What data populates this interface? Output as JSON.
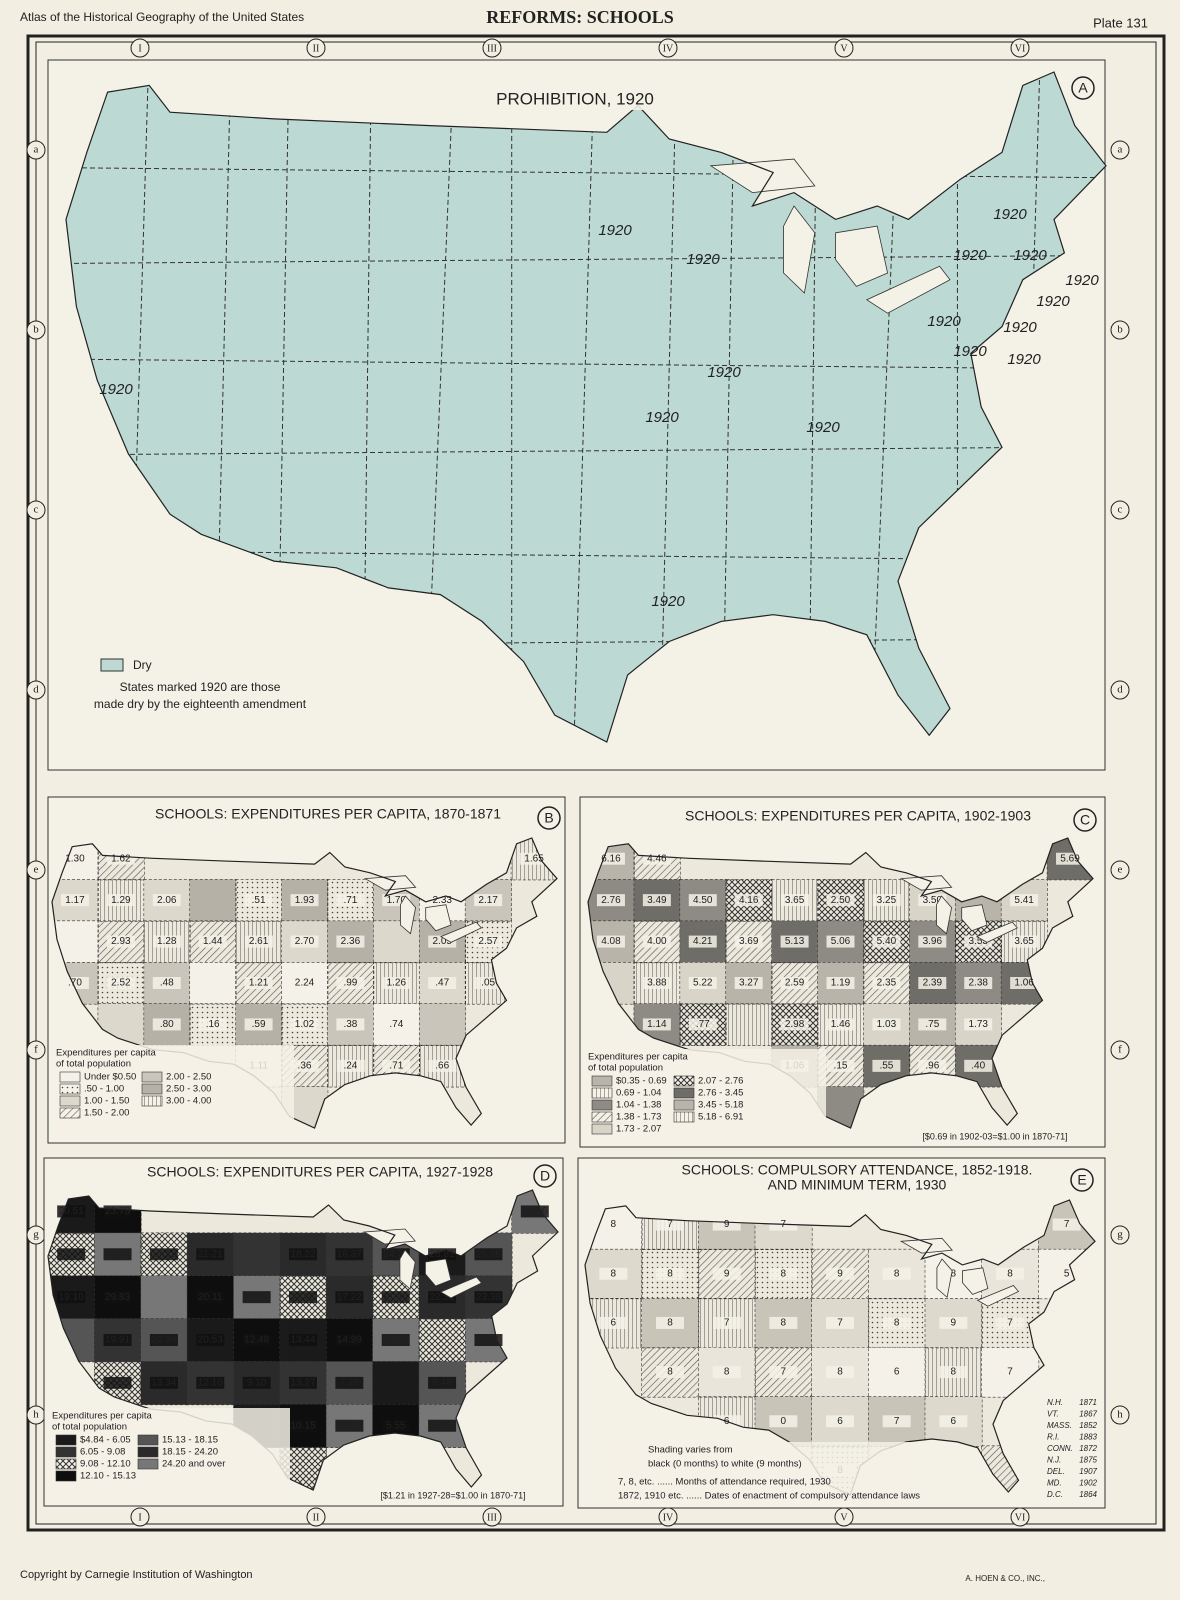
{
  "header": {
    "left": "Atlas of the Historical Geography of the United States",
    "title": "REFORMS: SCHOOLS",
    "plate": "Plate 131"
  },
  "grid": {
    "columns": [
      "I",
      "II",
      "III",
      "IV",
      "V",
      "VI"
    ],
    "rows": [
      "a",
      "b",
      "c",
      "d",
      "e",
      "f",
      "g",
      "h"
    ]
  },
  "maps": [
    {
      "letter": "A",
      "title": "PROHIBITION, 1920",
      "labels": [
        "1920",
        "1920",
        "1920",
        "1920",
        "1920",
        "1920",
        "1920",
        "1920",
        "1920",
        "1920",
        "1920",
        "1920",
        "1920",
        "1920",
        "1920",
        "1920"
      ],
      "legend": {
        "items": [
          "Dry"
        ],
        "note": [
          "States marked 1920 are those",
          "made dry by the eighteenth amendment"
        ]
      }
    },
    {
      "letter": "B",
      "title": "SCHOOLS: EXPENDITURES PER CAPITA, 1870-1871",
      "labels": [
        "1.30",
        "1.62",
        "1.65",
        "1.17",
        "1.29",
        "2.06",
        ".51",
        "1.93",
        ".71",
        "1.70",
        "2.33",
        "2.17",
        "2.93",
        "1.28",
        "1.44",
        "2.61",
        "2.70",
        "2.36",
        "2.05",
        "2.57",
        ".70",
        "2.52",
        ".48",
        "1.21",
        "2.24",
        ".99",
        "1.26",
        ".47",
        ".05",
        ".80",
        ".16",
        ".59",
        "1.02",
        ".38",
        ".74",
        "1.11",
        ".36",
        ".24",
        ".71",
        ".66"
      ],
      "legend": {
        "heading": [
          "Expenditures per capita",
          "of total population"
        ],
        "items": [
          "Under $0.50",
          ".50 - 1.00",
          "1.00 - 1.50",
          "1.50 - 2.00",
          "2.00 - 2.50",
          "2.50 - 3.00",
          "3.00 - 4.00"
        ]
      }
    },
    {
      "letter": "C",
      "title": "SCHOOLS: EXPENDITURES PER CAPITA, 1902-1903",
      "labels": [
        "6.16",
        "4.46",
        "5.69",
        "2.76",
        "3.49",
        "4.50",
        "4.16",
        "3.65",
        "2.50",
        "3.25",
        "3.50",
        "5.41",
        "4.08",
        "4.00",
        "4.21",
        "3.69",
        "5.13",
        "5.06",
        "5.40",
        "3.96",
        "3.53",
        "3.65",
        "3.88",
        "5.22",
        "3.27",
        "2.59",
        "1.19",
        "2.35",
        "2.39",
        "2.38",
        "1.06",
        "1.14",
        ".77",
        "2.98",
        "1.46",
        "1.03",
        ".75",
        "1.73",
        "1.06",
        ".15",
        ".55",
        ".96",
        ".40"
      ],
      "legend": {
        "heading": [
          "Expenditures per capita",
          "of total population"
        ],
        "items": [
          "$0.35 - 0.69",
          "0.69 - 1.04",
          "1.04 - 1.38",
          "1.38 - 1.73",
          "1.73 - 2.07",
          "2.07 - 2.76",
          "2.76 - 3.45",
          "3.45 - 5.18",
          "5.18 - 6.91"
        ],
        "note": "[$0.69 in 1902-03=$1.00 in 1870-71]"
      }
    },
    {
      "letter": "D",
      "title": "SCHOOLS: EXPENDITURES PER CAPITA, 1927-1928",
      "labels": [
        "20.51",
        "23.73",
        "24.26",
        "16.46",
        "22.16",
        "19.15",
        "21.21",
        "18.22",
        "16.37",
        "24.78",
        "23.81",
        "26.08",
        "19.10",
        "29.83",
        "20.11",
        "20.52",
        "16.01",
        "17.22",
        "31.66",
        "22.31",
        "23.38",
        "19.91",
        "22.39",
        "20.53",
        "12.48",
        "13.44",
        "14.99",
        "8.82",
        "8.73",
        "17.53",
        "13.34",
        "12.10",
        "9.10",
        "13.27",
        "7.28",
        "8.48",
        "12.01",
        "10.15",
        "7.85",
        "5.55",
        "11.12"
      ],
      "legend": {
        "heading": [
          "Expenditures per capita",
          "of total population"
        ],
        "items": [
          "$4.84 - 6.05",
          "6.05 - 9.08",
          "9.08 - 12.10",
          "12.10 - 15.13",
          "15.13 - 18.15",
          "18.15 - 24.20",
          "24.20 and over"
        ],
        "note": "[$1.21 in 1927-28=$1.00 in 1870-71]"
      }
    },
    {
      "letter": "E",
      "title": "SCHOOLS: COMPULSORY ATTENDANCE, 1852-1918.",
      "subtitle": "AND MINIMUM TERM, 1930",
      "labels": [
        "8",
        "7",
        "9",
        "7",
        "7",
        "8",
        "8",
        "9",
        "8",
        "9",
        "8",
        "8",
        "8",
        "5",
        "6",
        "8",
        "7",
        "8",
        "7",
        "8",
        "9",
        "7",
        "8",
        "8",
        "7",
        "8",
        "6",
        "8",
        "7",
        "6",
        "0",
        "6",
        "7",
        "6",
        "8"
      ],
      "legend": {
        "lines": [
          "Shading varies from",
          "black (0 months) to white (9 months)",
          "7, 8, etc. ...... Months of attendance required, 1930",
          "1872, 1910 etc. ...... Dates of enactment of compulsory attendance laws"
        ]
      },
      "side_list": [
        [
          "N.H.",
          "1871"
        ],
        [
          "VT.",
          "1867"
        ],
        [
          "MASS.",
          "1852"
        ],
        [
          "R.I.",
          "1883"
        ],
        [
          "CONN.",
          "1872"
        ],
        [
          "N.J.",
          "1875"
        ],
        [
          "DEL.",
          "1907"
        ],
        [
          "MD.",
          "1902"
        ],
        [
          "D.C.",
          "1864"
        ]
      ]
    }
  ],
  "footer": {
    "left": "Copyright by Carnegie Institution of Washington",
    "right": "A. HOEN & CO., INC.,"
  }
}
